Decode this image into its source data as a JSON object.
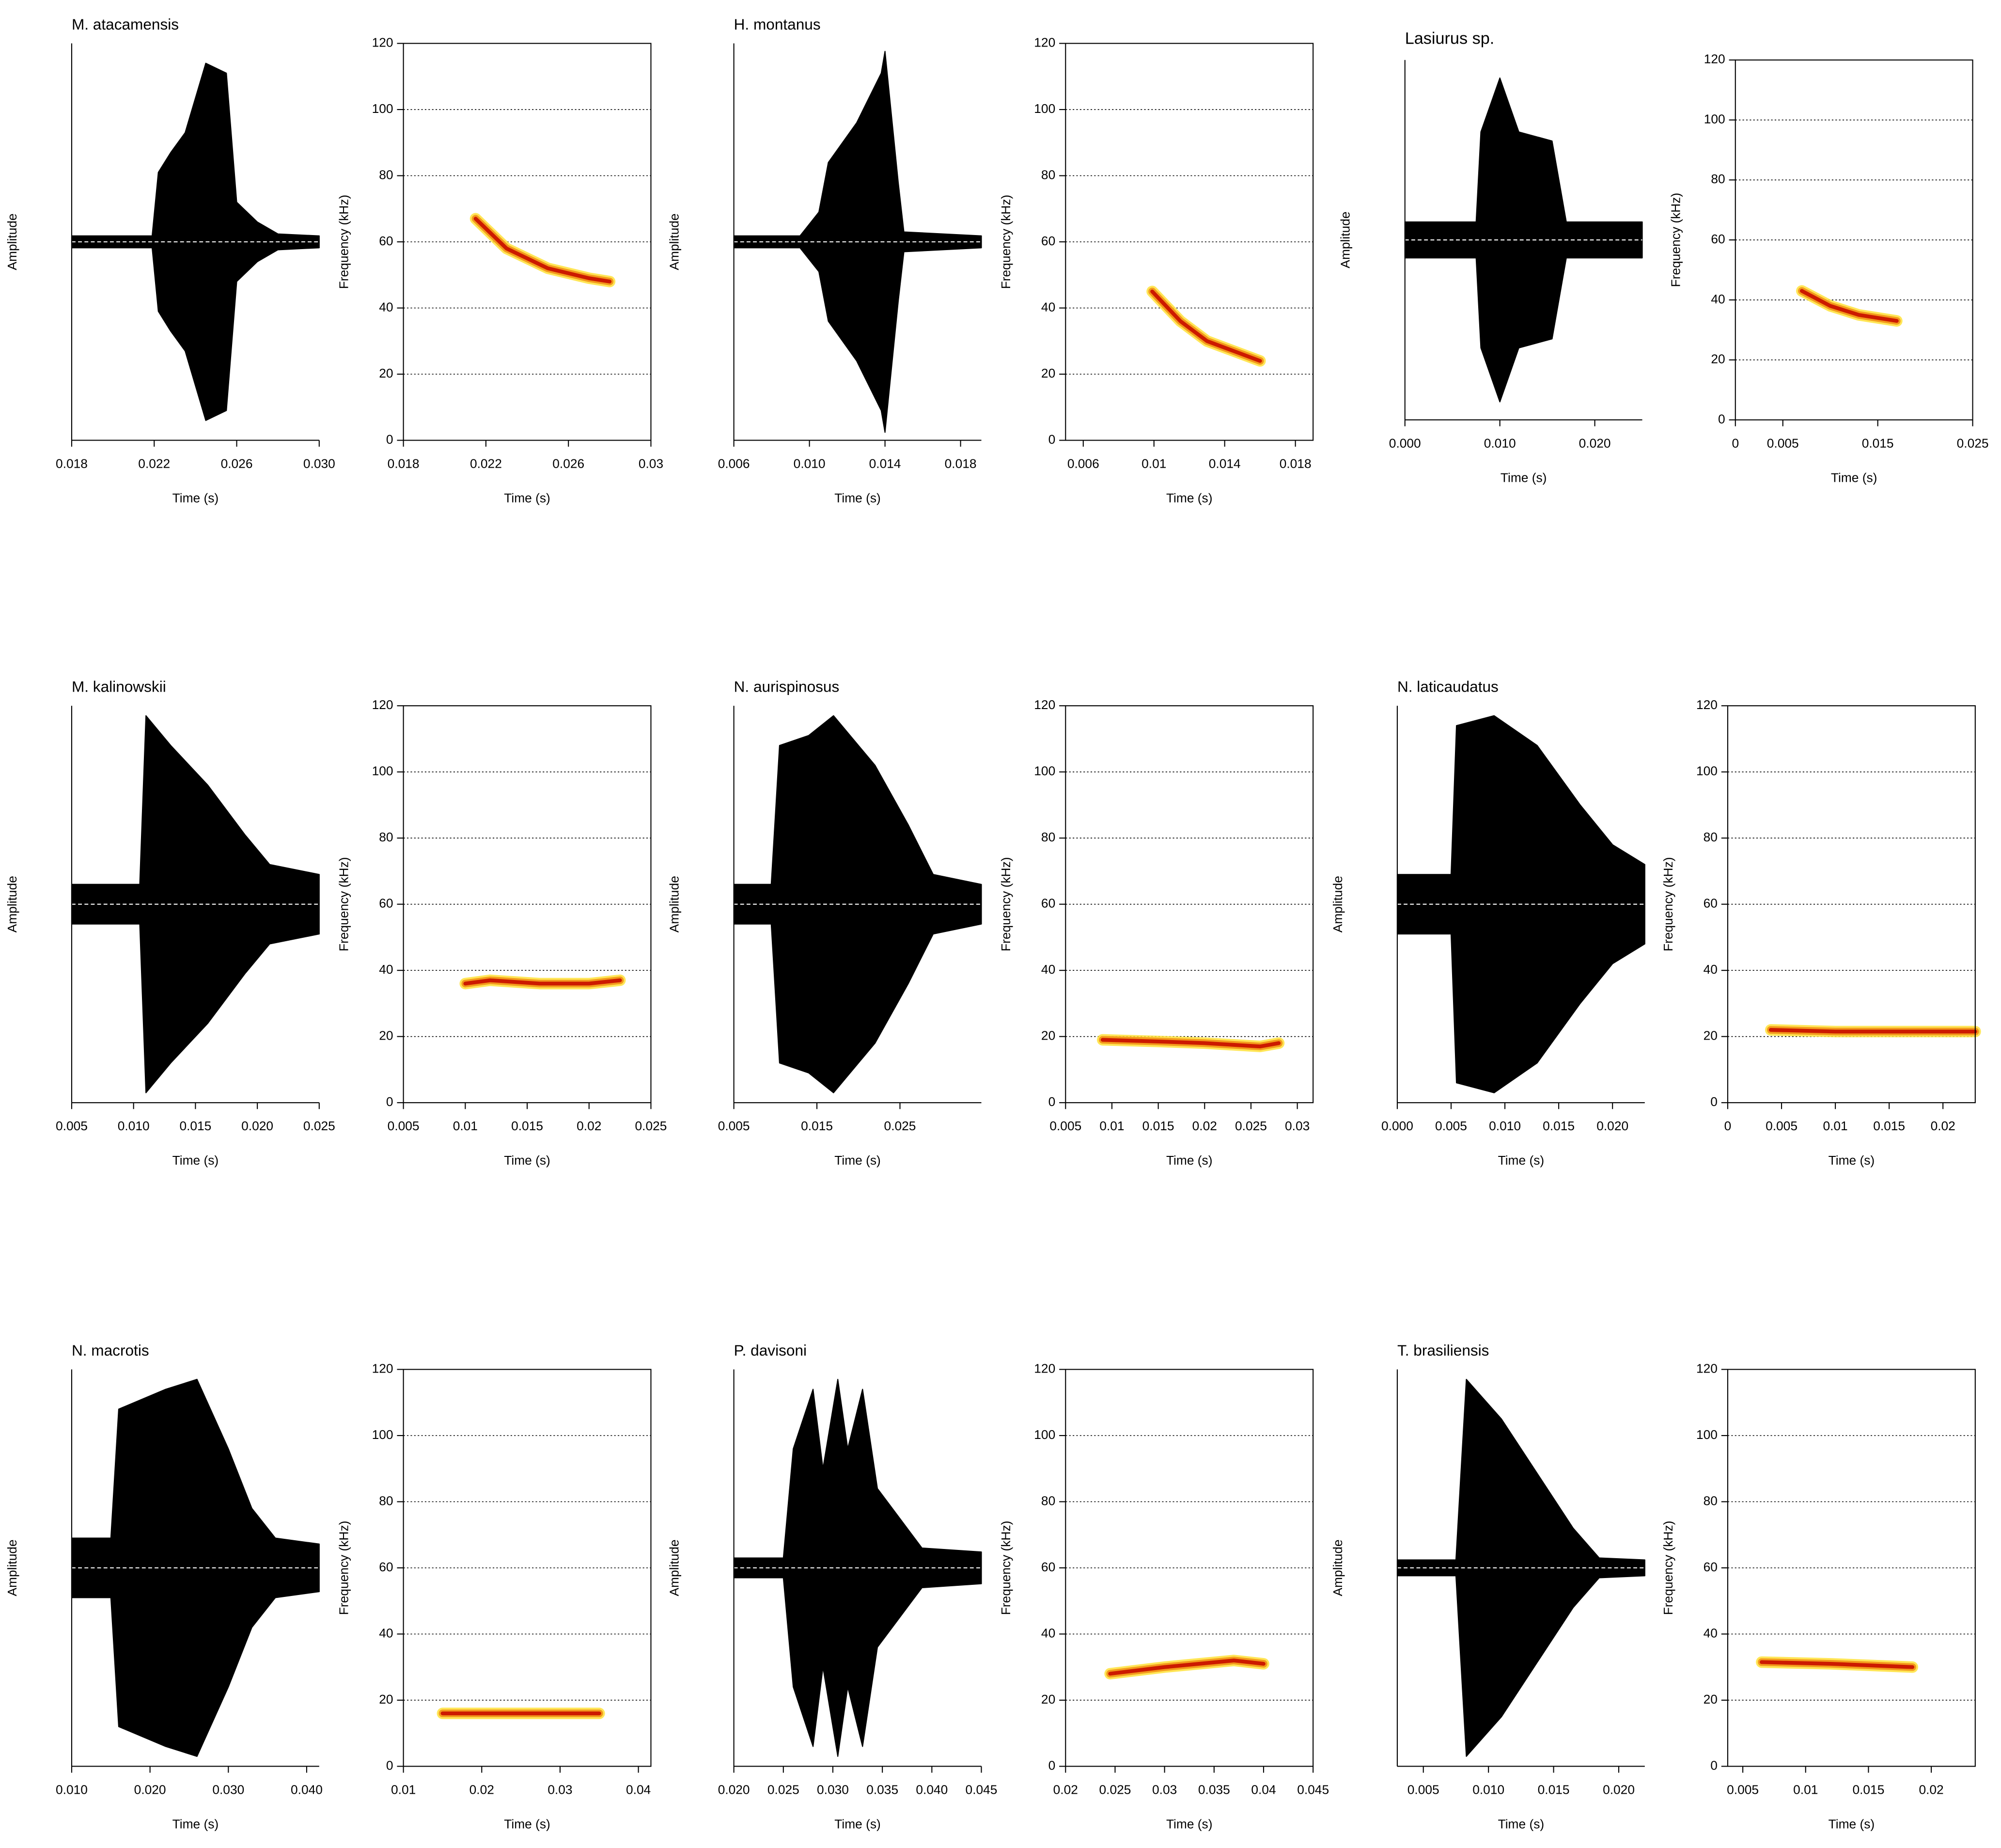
{
  "chart_data": [
    {
      "type": "waveform",
      "title": "M. atacamensis",
      "ylabel": "Amplitude",
      "xlabel": "Time (s)",
      "color": "#000000",
      "x": [
        0.018,
        0.0219,
        0.0222,
        0.0228,
        0.0235,
        0.0245,
        0.0255,
        0.026,
        0.027,
        0.028,
        0.03
      ],
      "values": [
        0.03,
        0.03,
        0.35,
        0.45,
        0.55,
        0.9,
        0.85,
        0.2,
        0.1,
        0.04,
        0.03
      ],
      "xlim": [
        0.018,
        0.03
      ],
      "xticks": [
        0.018,
        0.022,
        0.026,
        {
          "value": 0.03,
          "label": "0.030"
        }
      ],
      "ylim": [
        -1,
        1
      ]
    },
    {
      "type": "spectrogram",
      "ylabel": "Frequency (kHz)",
      "xlabel": "Time (s)",
      "color": "#cc1a00",
      "x": [
        0.0215,
        0.023,
        0.025,
        0.027,
        0.028
      ],
      "values": [
        67,
        58,
        52,
        49,
        48
      ],
      "xlim": [
        0.018,
        0.03
      ],
      "xticks": [
        0.018,
        0.022,
        0.026,
        0.03
      ],
      "ylim": [
        0,
        120
      ],
      "yticks": [
        0,
        20,
        40,
        60,
        80,
        100,
        120
      ],
      "grid": true
    },
    {
      "type": "waveform",
      "title": "H. montanus",
      "ylabel": "Amplitude",
      "xlabel": "Time (s)",
      "color": "#000000",
      "x": [
        0.006,
        0.0095,
        0.0105,
        0.011,
        0.0125,
        0.0138,
        0.014,
        0.0147,
        0.015,
        0.0191
      ],
      "values": [
        0.03,
        0.03,
        0.15,
        0.4,
        0.6,
        0.85,
        0.96,
        0.3,
        0.05,
        0.03
      ],
      "xlim": [
        0.006,
        0.0191
      ],
      "xticks": [
        0.006,
        {
          "value": 0.01,
          "label": "0.010"
        },
        0.014,
        0.018
      ],
      "ylim": [
        -1,
        1
      ]
    },
    {
      "type": "spectrogram",
      "ylabel": "Frequency (kHz)",
      "xlabel": "Time (s)",
      "color": "#cc1a00",
      "x": [
        0.0099,
        0.0115,
        0.013,
        0.0145,
        0.016
      ],
      "values": [
        45,
        36,
        30,
        27,
        24
      ],
      "xlim": [
        0.005,
        0.019
      ],
      "xticks": [
        0.006,
        0.01,
        0.014,
        0.018
      ],
      "ylim": [
        0,
        120
      ],
      "yticks": [
        0,
        20,
        40,
        60,
        80,
        100,
        120
      ],
      "grid": true
    },
    {
      "type": "waveform",
      "title": "Lasiurus sp.",
      "ylabel": "Amplitude",
      "xlabel": "Time (s)",
      "color": "#000000",
      "x": [
        0,
        0.0075,
        0.008,
        0.01,
        0.012,
        0.0155,
        0.017,
        0.025
      ],
      "values": [
        0.1,
        0.1,
        0.6,
        0.9,
        0.6,
        0.55,
        0.1,
        0.1
      ],
      "xlim": [
        0,
        0.025
      ],
      "xticks": [
        {
          "value": 0,
          "label": "0.000"
        },
        {
          "value": 0.01,
          "label": "0.010"
        },
        {
          "value": 0.02,
          "label": "0.020"
        }
      ],
      "ylim": [
        -1,
        1
      ]
    },
    {
      "type": "spectrogram",
      "ylabel": "Frequency (kHz)",
      "xlabel": "Time (s)",
      "color": "#cc1a00",
      "x": [
        0.007,
        0.01,
        0.013,
        0.017
      ],
      "values": [
        43,
        38,
        35,
        33
      ],
      "xlim": [
        0,
        0.025
      ],
      "xticks": [
        0,
        0.005,
        0.015,
        0.025
      ],
      "ylim": [
        0,
        120
      ],
      "yticks": [
        0,
        20,
        40,
        60,
        80,
        100,
        120
      ],
      "grid": true
    },
    {
      "type": "waveform",
      "title": "M. kalinowskii",
      "ylabel": "Amplitude",
      "xlabel": "Time (s)",
      "color": "#000000",
      "x": [
        0.005,
        0.0105,
        0.011,
        0.013,
        0.016,
        0.019,
        0.021,
        0.025
      ],
      "values": [
        0.1,
        0.1,
        0.95,
        0.8,
        0.6,
        0.35,
        0.2,
        0.15
      ],
      "xlim": [
        0.005,
        0.025
      ],
      "xticks": [
        0.005,
        {
          "value": 0.01,
          "label": "0.010"
        },
        0.015,
        {
          "value": 0.02,
          "label": "0.020"
        },
        0.025
      ],
      "ylim": [
        -1,
        1
      ]
    },
    {
      "type": "spectrogram",
      "ylabel": "Frequency (kHz)",
      "xlabel": "Time (s)",
      "color": "#cc1a00",
      "x": [
        0.01,
        0.012,
        0.016,
        0.02,
        0.0225
      ],
      "values": [
        36,
        37,
        36,
        36,
        37
      ],
      "xlim": [
        0.005,
        0.025
      ],
      "xticks": [
        0.005,
        0.01,
        0.015,
        0.02,
        0.025
      ],
      "ylim": [
        0,
        120
      ],
      "yticks": [
        0,
        20,
        40,
        60,
        80,
        100,
        120
      ],
      "grid": true
    },
    {
      "type": "waveform",
      "title": "N. aurispinosus",
      "ylabel": "Amplitude",
      "xlabel": "Time (s)",
      "color": "#000000",
      "x": [
        0.005,
        0.0095,
        0.0105,
        0.014,
        0.017,
        0.022,
        0.026,
        0.029,
        0.0348
      ],
      "values": [
        0.1,
        0.1,
        0.8,
        0.85,
        0.95,
        0.7,
        0.4,
        0.15,
        0.1
      ],
      "xlim": [
        0.005,
        0.0348
      ],
      "xticks": [
        0.005,
        0.015,
        0.025
      ],
      "ylim": [
        -1,
        1
      ]
    },
    {
      "type": "spectrogram",
      "ylabel": "Frequency (kHz)",
      "xlabel": "Time (s)",
      "color": "#cc1a00",
      "x": [
        0.009,
        0.015,
        0.02,
        0.026,
        0.028
      ],
      "values": [
        19,
        18.5,
        18,
        17,
        18
      ],
      "xlim": [
        0.005,
        0.0317
      ],
      "xticks": [
        0.005,
        0.01,
        0.015,
        0.02,
        0.025,
        0.03
      ],
      "ylim": [
        0,
        120
      ],
      "yticks": [
        0,
        20,
        40,
        60,
        80,
        100,
        120
      ],
      "grid": true
    },
    {
      "type": "waveform",
      "title": "N. laticaudatus",
      "ylabel": "Amplitude",
      "xlabel": "Time (s)",
      "color": "#000000",
      "x": [
        0,
        0.005,
        0.0055,
        0.009,
        0.013,
        0.017,
        0.02,
        0.023
      ],
      "values": [
        0.15,
        0.15,
        0.9,
        0.95,
        0.8,
        0.5,
        0.3,
        0.2
      ],
      "xlim": [
        0,
        0.023
      ],
      "xticks": [
        {
          "value": 0,
          "label": "0.000"
        },
        0.005,
        {
          "value": 0.01,
          "label": "0.010"
        },
        0.015,
        {
          "value": 0.02,
          "label": "0.020"
        }
      ],
      "ylim": [
        -1,
        1
      ]
    },
    {
      "type": "spectrogram",
      "ylabel": "Frequency (kHz)",
      "xlabel": "Time (s)",
      "color": "#cc1a00",
      "x": [
        0.004,
        0.01,
        0.018,
        0.023
      ],
      "values": [
        22,
        21.5,
        21.5,
        21.5
      ],
      "xlim": [
        0,
        0.023
      ],
      "xticks": [
        0,
        0.005,
        0.01,
        0.015,
        0.02
      ],
      "ylim": [
        0,
        120
      ],
      "yticks": [
        0,
        20,
        40,
        60,
        80,
        100,
        120
      ],
      "grid": true
    },
    {
      "type": "waveform",
      "title": "N. macrotis",
      "ylabel": "Amplitude",
      "xlabel": "Time (s)",
      "color": "#000000",
      "x": [
        0.01,
        0.015,
        0.016,
        0.022,
        0.026,
        0.03,
        0.033,
        0.036,
        0.0416
      ],
      "values": [
        0.15,
        0.15,
        0.8,
        0.9,
        0.95,
        0.6,
        0.3,
        0.15,
        0.12
      ],
      "xlim": [
        0.01,
        0.0416
      ],
      "xticks": [
        {
          "value": 0.01,
          "label": "0.010"
        },
        {
          "value": 0.02,
          "label": "0.020"
        },
        {
          "value": 0.03,
          "label": "0.030"
        },
        {
          "value": 0.04,
          "label": "0.040"
        }
      ],
      "ylim": [
        -1,
        1
      ]
    },
    {
      "type": "spectrogram",
      "ylabel": "Frequency (kHz)",
      "xlabel": "Time (s)",
      "color": "#cc1a00",
      "x": [
        0.015,
        0.025,
        0.035
      ],
      "values": [
        16,
        16,
        16
      ],
      "xlim": [
        0.01,
        0.0416
      ],
      "xticks": [
        0.01,
        0.02,
        0.03,
        0.04
      ],
      "ylim": [
        0,
        120
      ],
      "yticks": [
        0,
        20,
        40,
        60,
        80,
        100,
        120
      ],
      "grid": true
    },
    {
      "type": "waveform",
      "title": "P. davisoni",
      "ylabel": "Amplitude",
      "xlabel": "Time (s)",
      "color": "#000000",
      "x": [
        0.02,
        0.025,
        0.026,
        0.028,
        0.029,
        0.0305,
        0.0315,
        0.033,
        0.0345,
        0.036,
        0.039,
        0.045
      ],
      "values": [
        0.05,
        0.05,
        0.6,
        0.9,
        0.5,
        0.95,
        0.6,
        0.9,
        0.4,
        0.3,
        0.1,
        0.08
      ],
      "xlim": [
        0.02,
        0.045
      ],
      "xticks": [
        {
          "value": 0.02,
          "label": "0.020"
        },
        0.025,
        {
          "value": 0.03,
          "label": "0.030"
        },
        0.035,
        {
          "value": 0.04,
          "label": "0.040"
        },
        0.045
      ],
      "ylim": [
        -1,
        1
      ]
    },
    {
      "type": "spectrogram",
      "ylabel": "Frequency (kHz)",
      "xlabel": "Time (s)",
      "color": "#cc1a00",
      "x": [
        0.0245,
        0.03,
        0.037,
        0.04
      ],
      "values": [
        28,
        30,
        32,
        31
      ],
      "xlim": [
        0.02,
        0.045
      ],
      "xticks": [
        0.02,
        0.025,
        0.03,
        0.035,
        0.04,
        0.045
      ],
      "ylim": [
        0,
        120
      ],
      "yticks": [
        0,
        20,
        40,
        60,
        80,
        100,
        120
      ],
      "grid": true
    },
    {
      "type": "waveform",
      "title": "T. brasiliensis",
      "ylabel": "Amplitude",
      "xlabel": "Time (s)",
      "color": "#000000",
      "x": [
        0.003,
        0.0075,
        0.0083,
        0.011,
        0.014,
        0.0165,
        0.0185,
        0.022
      ],
      "values": [
        0.04,
        0.04,
        0.95,
        0.75,
        0.45,
        0.2,
        0.05,
        0.04
      ],
      "xlim": [
        0.003,
        0.022
      ],
      "xticks": [
        0.005,
        {
          "value": 0.01,
          "label": "0.010"
        },
        0.015,
        {
          "value": 0.02,
          "label": "0.020"
        }
      ],
      "ylim": [
        -1,
        1
      ]
    },
    {
      "type": "spectrogram",
      "ylabel": "Frequency (kHz)",
      "xlabel": "Time (s)",
      "color": "#cc1a00",
      "x": [
        0.0065,
        0.012,
        0.0185
      ],
      "values": [
        31.5,
        31,
        30
      ],
      "xlim": [
        0.0038,
        0.0235
      ],
      "xticks": [
        0.005,
        0.01,
        0.015,
        0.02
      ],
      "ylim": [
        0,
        120
      ],
      "yticks": [
        0,
        20,
        40,
        60,
        80,
        100,
        120
      ],
      "grid": true
    }
  ]
}
